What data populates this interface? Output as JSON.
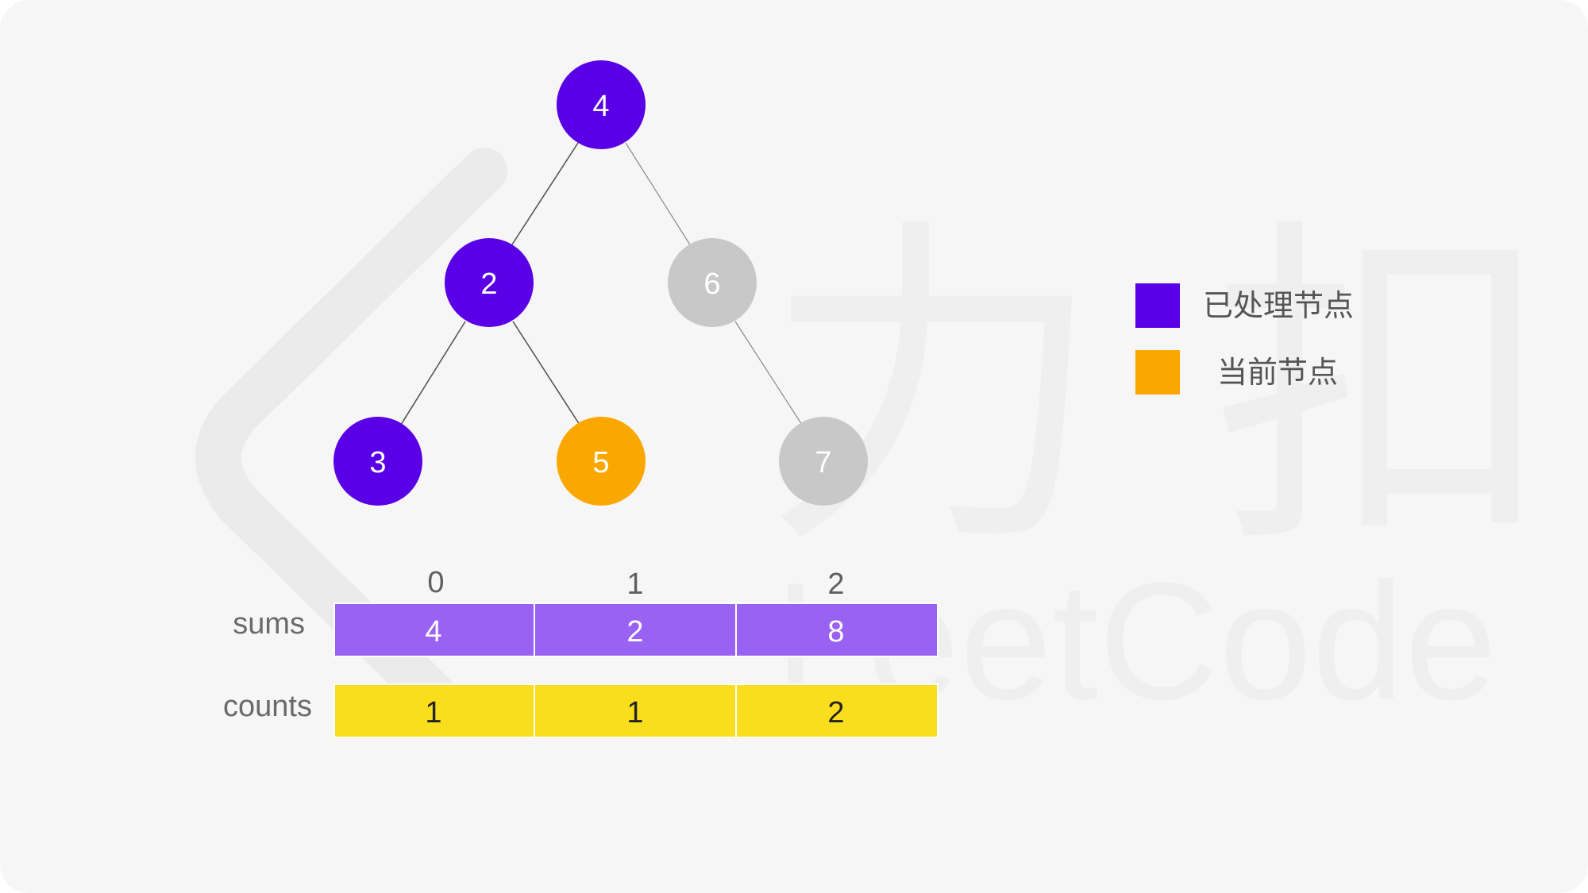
{
  "colors": {
    "processed": "#5a00e6",
    "current": "#faa700",
    "unvisited": "#c8c8c8",
    "sums_cell": "#9a62f3",
    "counts_cell": "#fadd1c",
    "watermark": "#ececec"
  },
  "tree": {
    "nodes": [
      {
        "id": "n4",
        "label": "4",
        "state": "processed"
      },
      {
        "id": "n2",
        "label": "2",
        "state": "processed"
      },
      {
        "id": "n6",
        "label": "6",
        "state": "unvisited"
      },
      {
        "id": "n3",
        "label": "3",
        "state": "processed"
      },
      {
        "id": "n5",
        "label": "5",
        "state": "current"
      },
      {
        "id": "n7",
        "label": "7",
        "state": "unvisited"
      }
    ],
    "edges": [
      {
        "from": "n4",
        "to": "n2"
      },
      {
        "from": "n4",
        "to": "n6"
      },
      {
        "from": "n2",
        "to": "n3"
      },
      {
        "from": "n2",
        "to": "n5"
      },
      {
        "from": "n6",
        "to": "n7"
      }
    ]
  },
  "arrays": {
    "indices": [
      "0",
      "1",
      "2"
    ],
    "sums": {
      "label": "sums",
      "values": [
        "4",
        "2",
        "8"
      ]
    },
    "counts": {
      "label": "counts",
      "values": [
        "1",
        "1",
        "2"
      ]
    }
  },
  "legend": {
    "processed": "已处理节点",
    "current": "当前节点"
  },
  "watermark": {
    "cn": "力 扣",
    "en": "LeetCode",
    "logo": "leetcode-logo-icon"
  }
}
